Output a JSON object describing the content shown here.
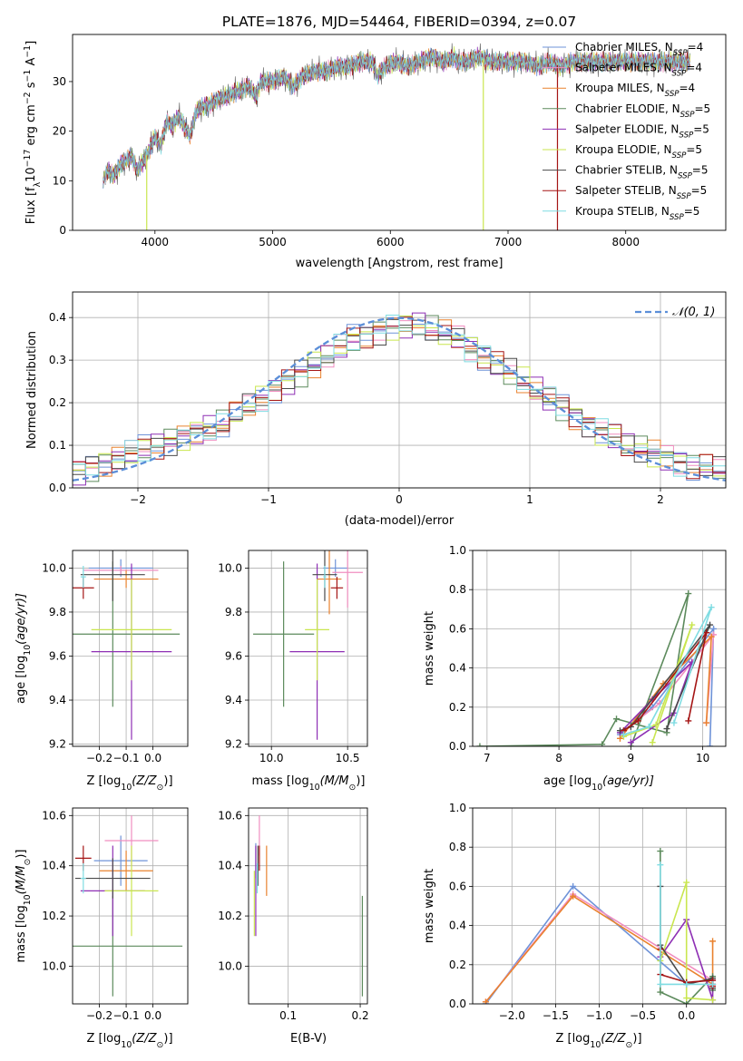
{
  "colors": {
    "chabrier_miles": "#6f93d8",
    "salpeter_miles": "#f08ec0",
    "kroupa_miles": "#e9822e",
    "chabrier_elodie": "#5c8a5c",
    "salpeter_elodie": "#8e2fb4",
    "kroupa_elodie": "#c9e64f",
    "chabrier_stelib": "#4a4a4a",
    "salpeter_stelib": "#a51515",
    "kroupa_stelib": "#7fdce2",
    "normal_curve": "#5b8ed8"
  },
  "chart_data": [
    {
      "id": "spectrum",
      "type": "line",
      "title": "PLATE=1876, MJD=54464, FIBERID=0394, z=0.07",
      "xlabel": "wavelength [Angstrom, rest frame]",
      "ylabel_main": "Flux [f",
      "ylabel_sub": "λ",
      "ylabel_mid": "10",
      "ylabel_sup": "−17",
      "ylabel_rest": " erg cm",
      "ylabel_sup2": "−2",
      "ylabel_rest2": " s",
      "ylabel_sup3": "−1",
      "ylabel_rest3": " A",
      "ylabel_sup4": "−1",
      "ylabel_end": "]",
      "xlim": [
        3300,
        8850
      ],
      "ylim": [
        0,
        39.5
      ],
      "xticks": [
        4000,
        5000,
        6000,
        7000,
        8000
      ],
      "yticks": [
        0,
        10,
        20,
        30
      ],
      "spectrum_x": [
        3560,
        3600,
        3650,
        3700,
        3750,
        3800,
        3850,
        3900,
        3950,
        4000,
        4050,
        4100,
        4150,
        4200,
        4250,
        4300,
        4350,
        4400,
        4450,
        4500,
        4600,
        4700,
        4800,
        4860,
        4900,
        5000,
        5100,
        5175,
        5250,
        5350,
        5450,
        5550,
        5650,
        5750,
        5850,
        5890,
        5950,
        6050,
        6150,
        6250,
        6350,
        6450,
        6550,
        6563,
        6650,
        6750,
        6850,
        6950,
        7050,
        7150,
        7250,
        7350,
        7450,
        7550,
        7650,
        7750,
        7850,
        7950,
        8050,
        8150,
        8250,
        8350,
        8450,
        8550
      ],
      "spectrum_y": [
        10,
        12,
        11,
        13,
        14,
        15,
        12,
        14,
        16,
        19,
        17,
        22,
        21,
        23,
        21,
        19,
        24,
        25,
        25,
        26,
        27,
        28,
        29,
        27,
        30,
        30,
        31,
        29,
        31,
        32,
        32,
        33,
        33,
        34,
        34,
        31,
        33,
        34,
        33,
        34,
        35,
        34,
        35,
        34,
        34,
        35,
        34,
        34,
        34,
        34,
        33,
        34,
        33,
        34,
        34,
        34,
        34,
        34,
        34,
        34,
        34,
        34,
        34,
        34
      ],
      "drop_lines": [
        {
          "x": 3930,
          "color_key": "kroupa_elodie"
        },
        {
          "x": 6790,
          "color_key": "kroupa_elodie"
        },
        {
          "x": 7420,
          "color_key": "salpeter_stelib"
        }
      ],
      "legend_position": "top-right",
      "legend": [
        {
          "label": "Chabrier MILES, N",
          "sub": "SSP",
          "tail": "=4",
          "color_key": "chabrier_miles"
        },
        {
          "label": "Salpeter MILES, N",
          "sub": "SSP",
          "tail": "=4",
          "color_key": "salpeter_miles"
        },
        {
          "label": "Kroupa MILES, N",
          "sub": "SSP",
          "tail": "=4",
          "color_key": "kroupa_miles"
        },
        {
          "label": "Chabrier ELODIE, N",
          "sub": "SSP",
          "tail": "=5",
          "color_key": "chabrier_elodie"
        },
        {
          "label": "Salpeter ELODIE, N",
          "sub": "SSP",
          "tail": "=5",
          "color_key": "salpeter_elodie"
        },
        {
          "label": "Kroupa ELODIE, N",
          "sub": "SSP",
          "tail": "=5",
          "color_key": "kroupa_elodie"
        },
        {
          "label": "Chabrier STELIB, N",
          "sub": "SSP",
          "tail": "=5",
          "color_key": "chabrier_stelib"
        },
        {
          "label": "Salpeter STELIB, N",
          "sub": "SSP",
          "tail": "=5",
          "color_key": "salpeter_stelib"
        },
        {
          "label": "Kroupa STELIB, N",
          "sub": "SSP",
          "tail": "=5",
          "color_key": "kroupa_stelib"
        }
      ]
    },
    {
      "id": "residuals",
      "type": "histogram",
      "xlabel": "(data-model)/error",
      "ylabel": "Normed distribution",
      "xlim": [
        -2.5,
        2.5
      ],
      "ylim": [
        0,
        0.46
      ],
      "xticks": [
        -2,
        -1,
        0,
        1,
        2
      ],
      "yticks": [
        0.0,
        0.1,
        0.2,
        0.3,
        0.4
      ],
      "grid": true,
      "bin_start": -2.5,
      "bin_width": 0.1,
      "base_values": [
        0.04,
        0.05,
        0.06,
        0.07,
        0.08,
        0.09,
        0.1,
        0.11,
        0.12,
        0.13,
        0.14,
        0.15,
        0.17,
        0.19,
        0.21,
        0.23,
        0.25,
        0.27,
        0.29,
        0.31,
        0.33,
        0.35,
        0.36,
        0.37,
        0.38,
        0.38,
        0.38,
        0.37,
        0.36,
        0.35,
        0.33,
        0.31,
        0.29,
        0.27,
        0.25,
        0.23,
        0.21,
        0.19,
        0.17,
        0.15,
        0.13,
        0.12,
        0.1,
        0.09,
        0.08,
        0.07,
        0.06,
        0.05,
        0.05,
        0.04
      ],
      "normal_legend": "𝒩(0, 1)",
      "legend_position": "top-right"
    },
    {
      "id": "z_vs_age",
      "type": "errorbar",
      "xlabel": "Z [log",
      "xlabel_sub": "10",
      "xlabel_rest": "(Z/Z",
      "xlabel_sub2": "⊙",
      "xlabel_end": ")]",
      "ylabel": "age  [log",
      "ylabel_sub": "10",
      "ylabel_rest": "(age/yr)]",
      "xlim": [
        -0.3,
        0.13
      ],
      "ylim": [
        9.19,
        10.08
      ],
      "xticks": [
        -0.2,
        -0.1,
        0.0
      ],
      "yticks": [
        9.2,
        9.4,
        9.6,
        9.8,
        10.0
      ],
      "points": [
        {
          "x": -0.12,
          "y": 10.0,
          "xerr": 0.12,
          "yerr": 0.04,
          "color_key": "chabrier_miles"
        },
        {
          "x": -0.12,
          "y": 9.99,
          "xerr": 0.14,
          "yerr": 0.02,
          "color_key": "salpeter_miles"
        },
        {
          "x": -0.1,
          "y": 9.95,
          "xerr": 0.12,
          "yerr": 0.04,
          "color_key": "kroupa_miles"
        },
        {
          "x": -0.15,
          "y": 9.7,
          "xerr": 0.25,
          "yerr": 0.33,
          "color_key": "chabrier_elodie"
        },
        {
          "x": -0.08,
          "y": 9.62,
          "xerr": 0.15,
          "yerr": 0.4,
          "color_key": "salpeter_elodie"
        },
        {
          "x": -0.08,
          "y": 9.72,
          "xerr": 0.15,
          "yerr": 0.23,
          "color_key": "kroupa_elodie"
        },
        {
          "x": -0.15,
          "y": 9.97,
          "xerr": 0.12,
          "yerr": 0.12,
          "color_key": "chabrier_stelib"
        },
        {
          "x": -0.26,
          "y": 9.91,
          "xerr": 0.04,
          "yerr": 0.05,
          "color_key": "salpeter_stelib"
        },
        {
          "x": -0.26,
          "y": 9.96,
          "xerr": 0.01,
          "yerr": 0.05,
          "color_key": "kroupa_stelib"
        }
      ]
    },
    {
      "id": "mass_vs_age",
      "type": "errorbar",
      "xlabel": "mass [log",
      "xlabel_sub": "10",
      "xlabel_rest": "(M/M",
      "xlabel_sub2": "⊙",
      "xlabel_end": ")]",
      "xlim": [
        9.85,
        10.63
      ],
      "ylim": [
        9.19,
        10.08
      ],
      "xticks": [
        10.0,
        10.5
      ],
      "yticks": [
        9.2,
        9.4,
        9.6,
        9.8,
        10.0
      ],
      "points": [
        {
          "x": 10.42,
          "y": 10.0,
          "xerr": 0.08,
          "yerr": 0.04,
          "color_key": "chabrier_miles"
        },
        {
          "x": 10.5,
          "y": 9.98,
          "xerr": 0.1,
          "yerr": 0.16,
          "color_key": "salpeter_miles"
        },
        {
          "x": 10.38,
          "y": 9.95,
          "xerr": 0.08,
          "yerr": 0.16,
          "color_key": "kroupa_miles"
        },
        {
          "x": 10.08,
          "y": 9.7,
          "xerr": 0.2,
          "yerr": 0.33,
          "color_key": "chabrier_elodie"
        },
        {
          "x": 10.3,
          "y": 9.62,
          "xerr": 0.18,
          "yerr": 0.4,
          "color_key": "salpeter_elodie"
        },
        {
          "x": 10.3,
          "y": 9.72,
          "xerr": 0.08,
          "yerr": 0.23,
          "color_key": "kroupa_elodie"
        },
        {
          "x": 10.35,
          "y": 9.97,
          "xerr": 0.08,
          "yerr": 0.12,
          "color_key": "chabrier_stelib"
        },
        {
          "x": 10.43,
          "y": 9.91,
          "xerr": 0.04,
          "yerr": 0.05,
          "color_key": "salpeter_stelib"
        },
        {
          "x": 10.35,
          "y": 9.96,
          "xerr": 0.01,
          "yerr": 0.05,
          "color_key": "kroupa_stelib"
        }
      ]
    },
    {
      "id": "age_weights",
      "type": "line",
      "xlabel": "age  [log",
      "xlabel_sub": "10",
      "xlabel_rest": "(age/yr)]",
      "ylabel": "mass weight",
      "xlim": [
        6.8,
        10.32
      ],
      "ylim": [
        0,
        1.0
      ],
      "xticks": [
        7,
        8,
        9,
        10
      ],
      "yticks": [
        0.0,
        0.2,
        0.4,
        0.6,
        0.8,
        1.0
      ],
      "grid": true,
      "series": [
        {
          "color_key": "chabrier_miles",
          "x": [
            8.85,
            9.3,
            10.15,
            10.1
          ],
          "y": [
            0.06,
            0.2,
            0.6,
            0.0
          ]
        },
        {
          "color_key": "salpeter_miles",
          "x": [
            8.9,
            9.4,
            10.15,
            10.05
          ],
          "y": [
            0.08,
            0.22,
            0.57,
            0.12
          ]
        },
        {
          "color_key": "kroupa_miles",
          "x": [
            8.85,
            9.45,
            10.12,
            10.05
          ],
          "y": [
            0.04,
            0.32,
            0.56,
            0.12
          ]
        },
        {
          "color_key": "chabrier_elodie",
          "x": [
            6.9,
            8.6,
            8.8,
            9.5,
            9.8,
            9.0
          ],
          "y": [
            0.0,
            0.01,
            0.14,
            0.07,
            0.78,
            0.0
          ]
        },
        {
          "color_key": "salpeter_elodie",
          "x": [
            8.85,
            9.3,
            9.85,
            9.6,
            9.0
          ],
          "y": [
            0.07,
            0.24,
            0.43,
            0.17,
            0.02
          ]
        },
        {
          "color_key": "kroupa_elodie",
          "x": [
            8.9,
            9.35,
            9.85,
            9.3
          ],
          "y": [
            0.05,
            0.11,
            0.62,
            0.02
          ]
        },
        {
          "color_key": "chabrier_stelib",
          "x": [
            8.85,
            9.0,
            10.1,
            9.5
          ],
          "y": [
            0.08,
            0.1,
            0.62,
            0.09
          ]
        },
        {
          "color_key": "salpeter_stelib",
          "x": [
            8.9,
            9.1,
            10.05,
            9.8
          ],
          "y": [
            0.08,
            0.13,
            0.58,
            0.13
          ]
        },
        {
          "color_key": "kroupa_stelib",
          "x": [
            8.9,
            9.25,
            10.12,
            9.6
          ],
          "y": [
            0.06,
            0.1,
            0.71,
            0.12
          ]
        }
      ]
    },
    {
      "id": "z_vs_mass",
      "type": "errorbar",
      "xlabel": "Z [log",
      "xlabel_sub": "10",
      "xlabel_rest": "(Z/Z",
      "xlabel_sub2": "⊙",
      "xlabel_end": ")]",
      "ylabel": "mass [log",
      "ylabel_sub": "10",
      "ylabel_rest": "(M/M",
      "ylabel_sub2": "⊙",
      "ylabel_end": ")]",
      "xlim": [
        -0.3,
        0.13
      ],
      "ylim": [
        9.85,
        10.63
      ],
      "xticks": [
        -0.2,
        -0.1,
        0.0
      ],
      "yticks": [
        10.0,
        10.2,
        10.4,
        10.6
      ],
      "points": [
        {
          "x": -0.12,
          "y": 10.42,
          "xerr": 0.1,
          "yerr": 0.1,
          "color_key": "chabrier_miles"
        },
        {
          "x": -0.08,
          "y": 10.5,
          "xerr": 0.1,
          "yerr": 0.1,
          "color_key": "salpeter_miles"
        },
        {
          "x": -0.1,
          "y": 10.38,
          "xerr": 0.1,
          "yerr": 0.08,
          "color_key": "kroupa_miles"
        },
        {
          "x": -0.15,
          "y": 10.08,
          "xerr": 0.26,
          "yerr": 0.2,
          "color_key": "chabrier_elodie"
        },
        {
          "x": -0.15,
          "y": 10.3,
          "xerr": 0.12,
          "yerr": 0.18,
          "color_key": "salpeter_elodie"
        },
        {
          "x": -0.08,
          "y": 10.3,
          "xerr": 0.1,
          "yerr": 0.18,
          "color_key": "kroupa_elodie"
        },
        {
          "x": -0.15,
          "y": 10.35,
          "xerr": 0.14,
          "yerr": 0.08,
          "color_key": "chabrier_stelib"
        },
        {
          "x": -0.26,
          "y": 10.43,
          "xerr": 0.03,
          "yerr": 0.05,
          "color_key": "salpeter_stelib"
        },
        {
          "x": -0.26,
          "y": 10.35,
          "xerr": 0.01,
          "yerr": 0.06,
          "color_key": "kroupa_stelib"
        }
      ]
    },
    {
      "id": "ebv_vs_mass",
      "type": "errorbar",
      "xlabel": "E(B-V)",
      "xlim": [
        0.045,
        0.21
      ],
      "ylim": [
        9.85,
        10.63
      ],
      "xticks": [
        0.1,
        0.2
      ],
      "yticks": [
        10.0,
        10.2,
        10.4,
        10.6
      ],
      "points": [
        {
          "x": 0.055,
          "y": 10.42,
          "xerr": 0,
          "yerr": 0.07,
          "color_key": "chabrier_miles"
        },
        {
          "x": 0.06,
          "y": 10.52,
          "xerr": 0,
          "yerr": 0.08,
          "color_key": "salpeter_miles"
        },
        {
          "x": 0.07,
          "y": 10.38,
          "xerr": 0,
          "yerr": 0.1,
          "color_key": "kroupa_miles"
        },
        {
          "x": 0.203,
          "y": 10.08,
          "xerr": 0,
          "yerr": 0.2,
          "color_key": "chabrier_elodie"
        },
        {
          "x": 0.055,
          "y": 10.3,
          "xerr": 0,
          "yerr": 0.18,
          "color_key": "salpeter_elodie"
        },
        {
          "x": 0.053,
          "y": 10.25,
          "xerr": 0,
          "yerr": 0.13,
          "color_key": "kroupa_elodie"
        },
        {
          "x": 0.058,
          "y": 10.4,
          "xerr": 0,
          "yerr": 0.08,
          "color_key": "chabrier_stelib"
        },
        {
          "x": 0.06,
          "y": 10.43,
          "xerr": 0,
          "yerr": 0.05,
          "color_key": "salpeter_stelib"
        },
        {
          "x": 0.057,
          "y": 10.35,
          "xerr": 0,
          "yerr": 0.06,
          "color_key": "kroupa_stelib"
        }
      ]
    },
    {
      "id": "z_weights",
      "type": "line",
      "xlabel": "Z [log",
      "xlabel_sub": "10",
      "xlabel_rest": "(Z/Z",
      "xlabel_sub2": "⊙",
      "xlabel_end": ")]",
      "ylabel": "mass weight",
      "xlim": [
        -2.45,
        0.45
      ],
      "ylim": [
        0,
        1.0
      ],
      "xticks": [
        -2.0,
        -1.5,
        -1.0,
        -0.5,
        0.0
      ],
      "yticks": [
        0.0,
        0.2,
        0.4,
        0.6,
        0.8,
        1.0
      ],
      "grid": true,
      "series": [
        {
          "color_key": "chabrier_miles",
          "x": [
            -2.3,
            -1.3,
            0.0,
            0.0
          ],
          "y": [
            0.0,
            0.6,
            0.1,
            0.1
          ]
        },
        {
          "color_key": "salpeter_miles",
          "x": [
            -2.3,
            -1.3,
            0.3,
            0.3
          ],
          "y": [
            0.01,
            0.56,
            0.12,
            0.12
          ]
        },
        {
          "color_key": "kroupa_miles",
          "x": [
            -2.3,
            -1.3,
            0.3,
            0.3
          ],
          "y": [
            0.01,
            0.55,
            0.1,
            0.32
          ]
        },
        {
          "color_key": "chabrier_elodie",
          "x": [
            -0.3,
            -0.3,
            0.0,
            0.3,
            0.3
          ],
          "y": [
            0.78,
            0.06,
            0.0,
            0.14,
            0.07
          ]
        },
        {
          "color_key": "salpeter_elodie",
          "x": [
            -0.3,
            0.0,
            0.3,
            0.3
          ],
          "y": [
            0.24,
            0.43,
            0.02,
            0.1
          ]
        },
        {
          "color_key": "kroupa_elodie",
          "x": [
            -0.3,
            0.0,
            0.0,
            0.3
          ],
          "y": [
            0.22,
            0.62,
            0.03,
            0.02
          ]
        },
        {
          "color_key": "chabrier_stelib",
          "x": [
            -0.3,
            -0.3,
            0.0,
            0.3,
            0.3
          ],
          "y": [
            0.6,
            0.3,
            0.1,
            0.13,
            0.08
          ]
        },
        {
          "color_key": "salpeter_stelib",
          "x": [
            -0.3,
            -0.3,
            0.0,
            0.3,
            0.3
          ],
          "y": [
            0.28,
            0.15,
            0.11,
            0.12,
            0.09
          ]
        },
        {
          "color_key": "kroupa_stelib",
          "x": [
            -0.3,
            -0.3,
            0.0,
            0.3
          ],
          "y": [
            0.71,
            0.1,
            0.1,
            0.1
          ]
        }
      ]
    }
  ]
}
